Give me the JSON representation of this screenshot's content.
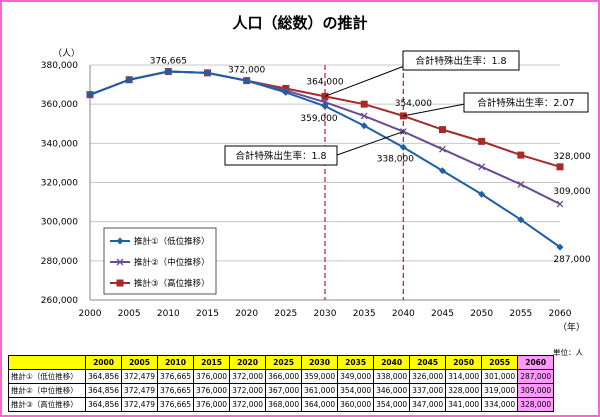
{
  "title": "人口（総数）の推計",
  "table": {
    "unit_note": "単位：人",
    "years": [
      "2000",
      "2005",
      "2010",
      "2015",
      "2020",
      "2025",
      "2030",
      "2035",
      "2040",
      "2045",
      "2050",
      "2055",
      "2060"
    ],
    "rows": [
      {
        "label": "推計①（低位推移）",
        "values": [
          "364,856",
          "372,479",
          "376,665",
          "376,000",
          "372,000",
          "366,000",
          "359,000",
          "349,000",
          "338,000",
          "326,000",
          "314,000",
          "301,000",
          "287,000"
        ]
      },
      {
        "label": "推計②（中位推移）",
        "values": [
          "364,856",
          "372,479",
          "376,665",
          "376,000",
          "372,000",
          "367,000",
          "361,000",
          "354,000",
          "346,000",
          "337,000",
          "328,000",
          "319,000",
          "309,000"
        ]
      },
      {
        "label": "推計③（高位推移）",
        "values": [
          "364,856",
          "372,479",
          "376,665",
          "376,000",
          "372,000",
          "368,000",
          "364,000",
          "360,000",
          "354,000",
          "347,000",
          "341,000",
          "334,000",
          "328,000"
        ]
      }
    ],
    "highlight_color": "#ff99ff",
    "header_color": "#ffff00"
  },
  "chart_data": {
    "type": "line",
    "title": "人口（総数）の推計",
    "ylabel": "（人）",
    "xlabel": "（年）",
    "x": [
      2000,
      2005,
      2010,
      2015,
      2020,
      2025,
      2030,
      2035,
      2040,
      2045,
      2050,
      2055,
      2060
    ],
    "ylim": [
      260000,
      380000
    ],
    "yticks": [
      260000,
      280000,
      300000,
      320000,
      340000,
      360000,
      380000
    ],
    "ytick_labels": [
      "260,000",
      "280,000",
      "300,000",
      "320,000",
      "340,000",
      "360,000",
      "380,000"
    ],
    "grid": true,
    "legend_position": "bottom-left",
    "series": [
      {
        "name": "推計①（低位推移）",
        "color": "#1f5fa6",
        "marker": "diamond",
        "values": [
          364856,
          372479,
          376665,
          376000,
          372000,
          366000,
          359000,
          349000,
          338000,
          326000,
          314000,
          301000,
          287000
        ]
      },
      {
        "name": "推計②（中位推移）",
        "color": "#6a4c93",
        "marker": "x",
        "values": [
          364856,
          372479,
          376665,
          376000,
          372000,
          367000,
          361000,
          354000,
          346000,
          337000,
          328000,
          319000,
          309000
        ]
      },
      {
        "name": "推計③（高位推移）",
        "color": "#a52a2a",
        "marker": "square",
        "values": [
          364856,
          372479,
          376665,
          376000,
          372000,
          368000,
          364000,
          360000,
          354000,
          347000,
          341000,
          334000,
          328000
        ]
      }
    ],
    "vlines": [
      2030,
      2040
    ],
    "vline_color": "#b22222",
    "data_labels": [
      {
        "x": 2010,
        "y": 376665,
        "text": "376,665",
        "pos": "above"
      },
      {
        "x": 2020,
        "y": 372000,
        "text": "372,000",
        "pos": "above"
      },
      {
        "x": 2030,
        "y": 364000,
        "text": "364,000",
        "pos": "above"
      },
      {
        "x": 2030,
        "y": 359000,
        "text": "359,000",
        "pos": "below"
      },
      {
        "x": 2040,
        "y": 354000,
        "text": "354,000",
        "pos": "above"
      },
      {
        "x": 2040,
        "y": 338000,
        "text": "338,000",
        "pos": "below"
      },
      {
        "x": 2060,
        "y": 328000,
        "text": "328,000",
        "pos": "above"
      },
      {
        "x": 2060,
        "y": 309000,
        "text": "309,000",
        "pos": "above"
      },
      {
        "x": 2060,
        "y": 287000,
        "text": "287,000",
        "pos": "below"
      }
    ],
    "callouts": [
      {
        "text": "合計特殊出生率：1.8",
        "target_x": 2030,
        "target_y": 364000,
        "box": "top-center"
      },
      {
        "text": "合計特殊出生率：2.07",
        "target_x": 2040,
        "target_y": 354000,
        "box": "right"
      },
      {
        "text": "合計特殊出生率：1.8",
        "target_x": 2040,
        "target_y": 346000,
        "box": "left"
      }
    ]
  }
}
